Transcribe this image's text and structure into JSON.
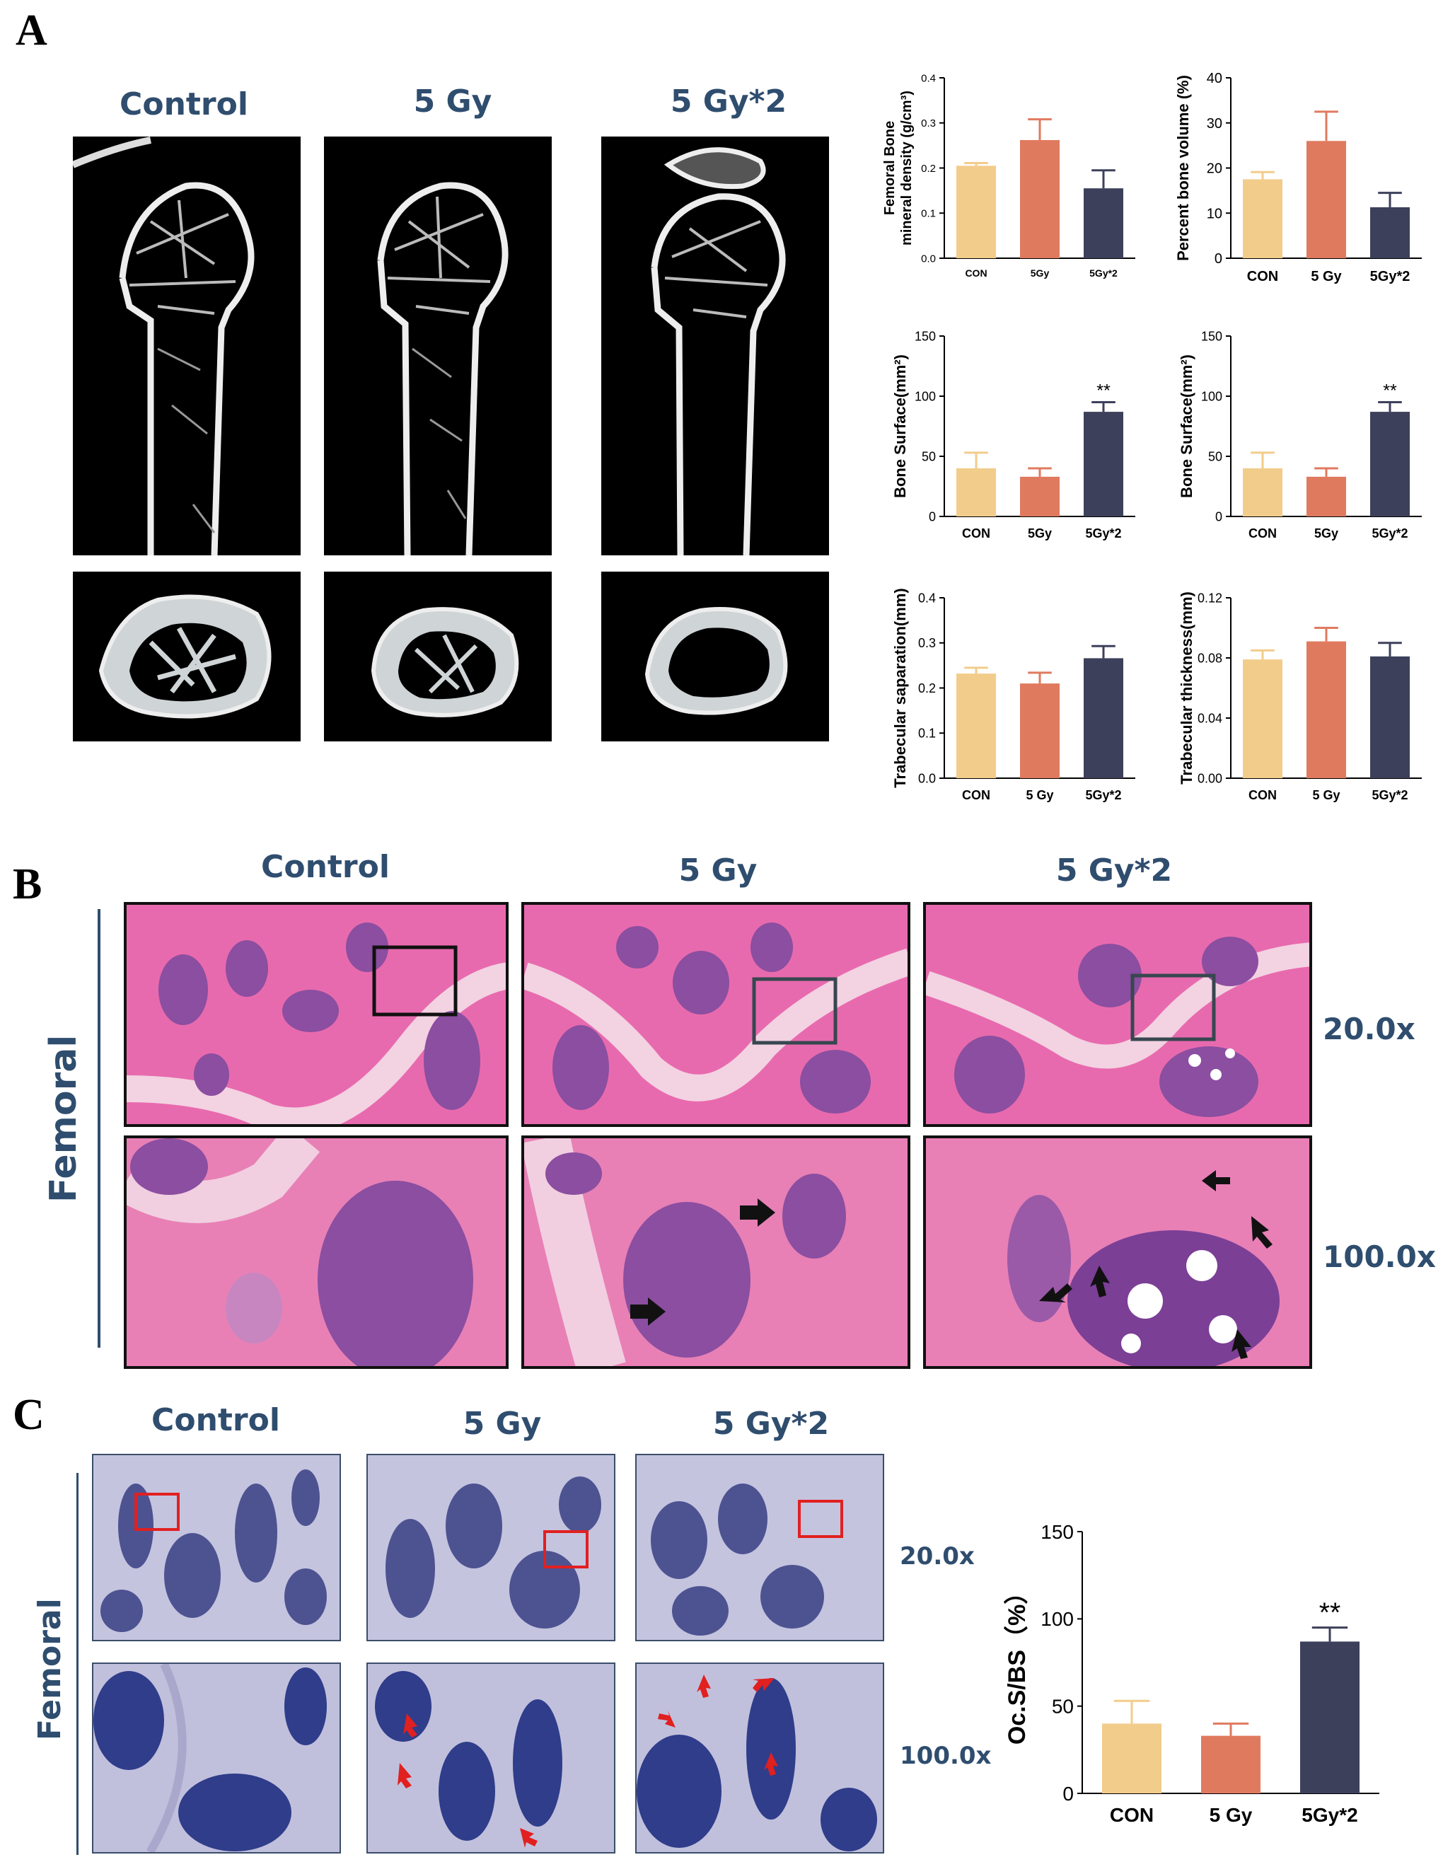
{
  "panelA": {
    "letter": "A",
    "columns": [
      "Control",
      "5 Gy",
      "5 Gy*2"
    ]
  },
  "panelB": {
    "letter": "B",
    "columns": [
      "Control",
      "5 Gy",
      "5 Gy*2"
    ],
    "row_label": "Femoral",
    "magnifications": [
      "20.0x",
      "100.0x"
    ]
  },
  "panelC": {
    "letter": "C",
    "columns": [
      "Control",
      "5 Gy",
      "5 Gy*2"
    ],
    "row_label": "Femoral",
    "magnifications": [
      "20.0x",
      "100.0x"
    ]
  },
  "colors": {
    "CON": "#f2cc8b",
    "5Gy": "#e07a5f",
    "5Gy2": "#3d405b",
    "title": "#2f4d6e"
  },
  "chart_data": [
    {
      "type": "bar",
      "ylabel": "Femoral Bone mineral density (g/cm3)",
      "ylabel_lines": [
        "Femoral Bone",
        "mineral density (g/cm³)"
      ],
      "categories": [
        "CON",
        "5Gy",
        "5Gy*2"
      ],
      "values": [
        0.205,
        0.262,
        0.155
      ],
      "errors": [
        0.006,
        0.046,
        0.04
      ],
      "significance": [
        "",
        "",
        ""
      ],
      "ylim": [
        0,
        0.4
      ],
      "yticks": [
        "0.0",
        "0.1",
        "0.2",
        "0.3",
        "0.4"
      ]
    },
    {
      "type": "bar",
      "ylabel": "Percent bone volume (%)",
      "ylabel_lines": [
        "Percent bone volume (%)"
      ],
      "categories": [
        "CON",
        "5 Gy",
        "5Gy*2"
      ],
      "values": [
        17.5,
        26,
        11.3
      ],
      "errors": [
        1.6,
        6.5,
        3.2
      ],
      "significance": [
        "",
        "",
        ""
      ],
      "ylim": [
        0,
        40
      ],
      "yticks": [
        "0",
        "10",
        "20",
        "30",
        "40"
      ]
    },
    {
      "type": "bar",
      "ylabel": "Bone Surface(mm2)",
      "ylabel_lines": [
        "Bone Surface(mm²)"
      ],
      "categories": [
        "CON",
        "5Gy",
        "5Gy*2"
      ],
      "values": [
        40,
        33,
        87
      ],
      "errors": [
        13,
        7,
        8
      ],
      "significance": [
        "",
        "",
        "**"
      ],
      "ylim": [
        0,
        150
      ],
      "yticks": [
        "0",
        "50",
        "100",
        "150"
      ]
    },
    {
      "type": "bar",
      "ylabel": "Bone Surface(mm2)",
      "ylabel_lines": [
        "Bone Surface(mm²)"
      ],
      "categories": [
        "CON",
        "5Gy",
        "5Gy*2"
      ],
      "values": [
        40,
        33,
        87
      ],
      "errors": [
        13,
        7,
        8
      ],
      "significance": [
        "",
        "",
        "**"
      ],
      "ylim": [
        0,
        150
      ],
      "yticks": [
        "0",
        "50",
        "100",
        "150"
      ]
    },
    {
      "type": "bar",
      "ylabel": "Trabecular saparation(mm)",
      "ylabel_lines": [
        "Trabecular saparation(mm)"
      ],
      "categories": [
        "CON",
        "5 Gy",
        "5Gy*2"
      ],
      "values": [
        0.232,
        0.21,
        0.266
      ],
      "errors": [
        0.013,
        0.024,
        0.027
      ],
      "significance": [
        "",
        "",
        ""
      ],
      "ylim": [
        0,
        0.4
      ],
      "yticks": [
        "0.0",
        "0.1",
        "0.2",
        "0.3",
        "0.4"
      ]
    },
    {
      "type": "bar",
      "ylabel": "Trabecular thickness(mm)",
      "ylabel_lines": [
        "Trabecular thickness(mm)"
      ],
      "categories": [
        "CON",
        "5 Gy",
        "5Gy*2"
      ],
      "values": [
        0.079,
        0.091,
        0.081
      ],
      "errors": [
        0.006,
        0.009,
        0.009
      ],
      "significance": [
        "",
        "",
        ""
      ],
      "ylim": [
        0,
        0.12
      ],
      "yticks": [
        "0.00",
        "0.04",
        "0.08",
        "0.12"
      ]
    },
    {
      "type": "bar",
      "ylabel": "Oc.S/BS (%)",
      "ylabel_lines": [
        "Oc.S/BS（%）"
      ],
      "categories": [
        "CON",
        "5 Gy",
        "5Gy*2"
      ],
      "values": [
        40,
        33,
        87
      ],
      "errors": [
        13,
        7,
        8
      ],
      "significance": [
        "",
        "",
        "**"
      ],
      "ylim": [
        0,
        150
      ],
      "yticks": [
        "0",
        "50",
        "100",
        "150"
      ]
    }
  ]
}
